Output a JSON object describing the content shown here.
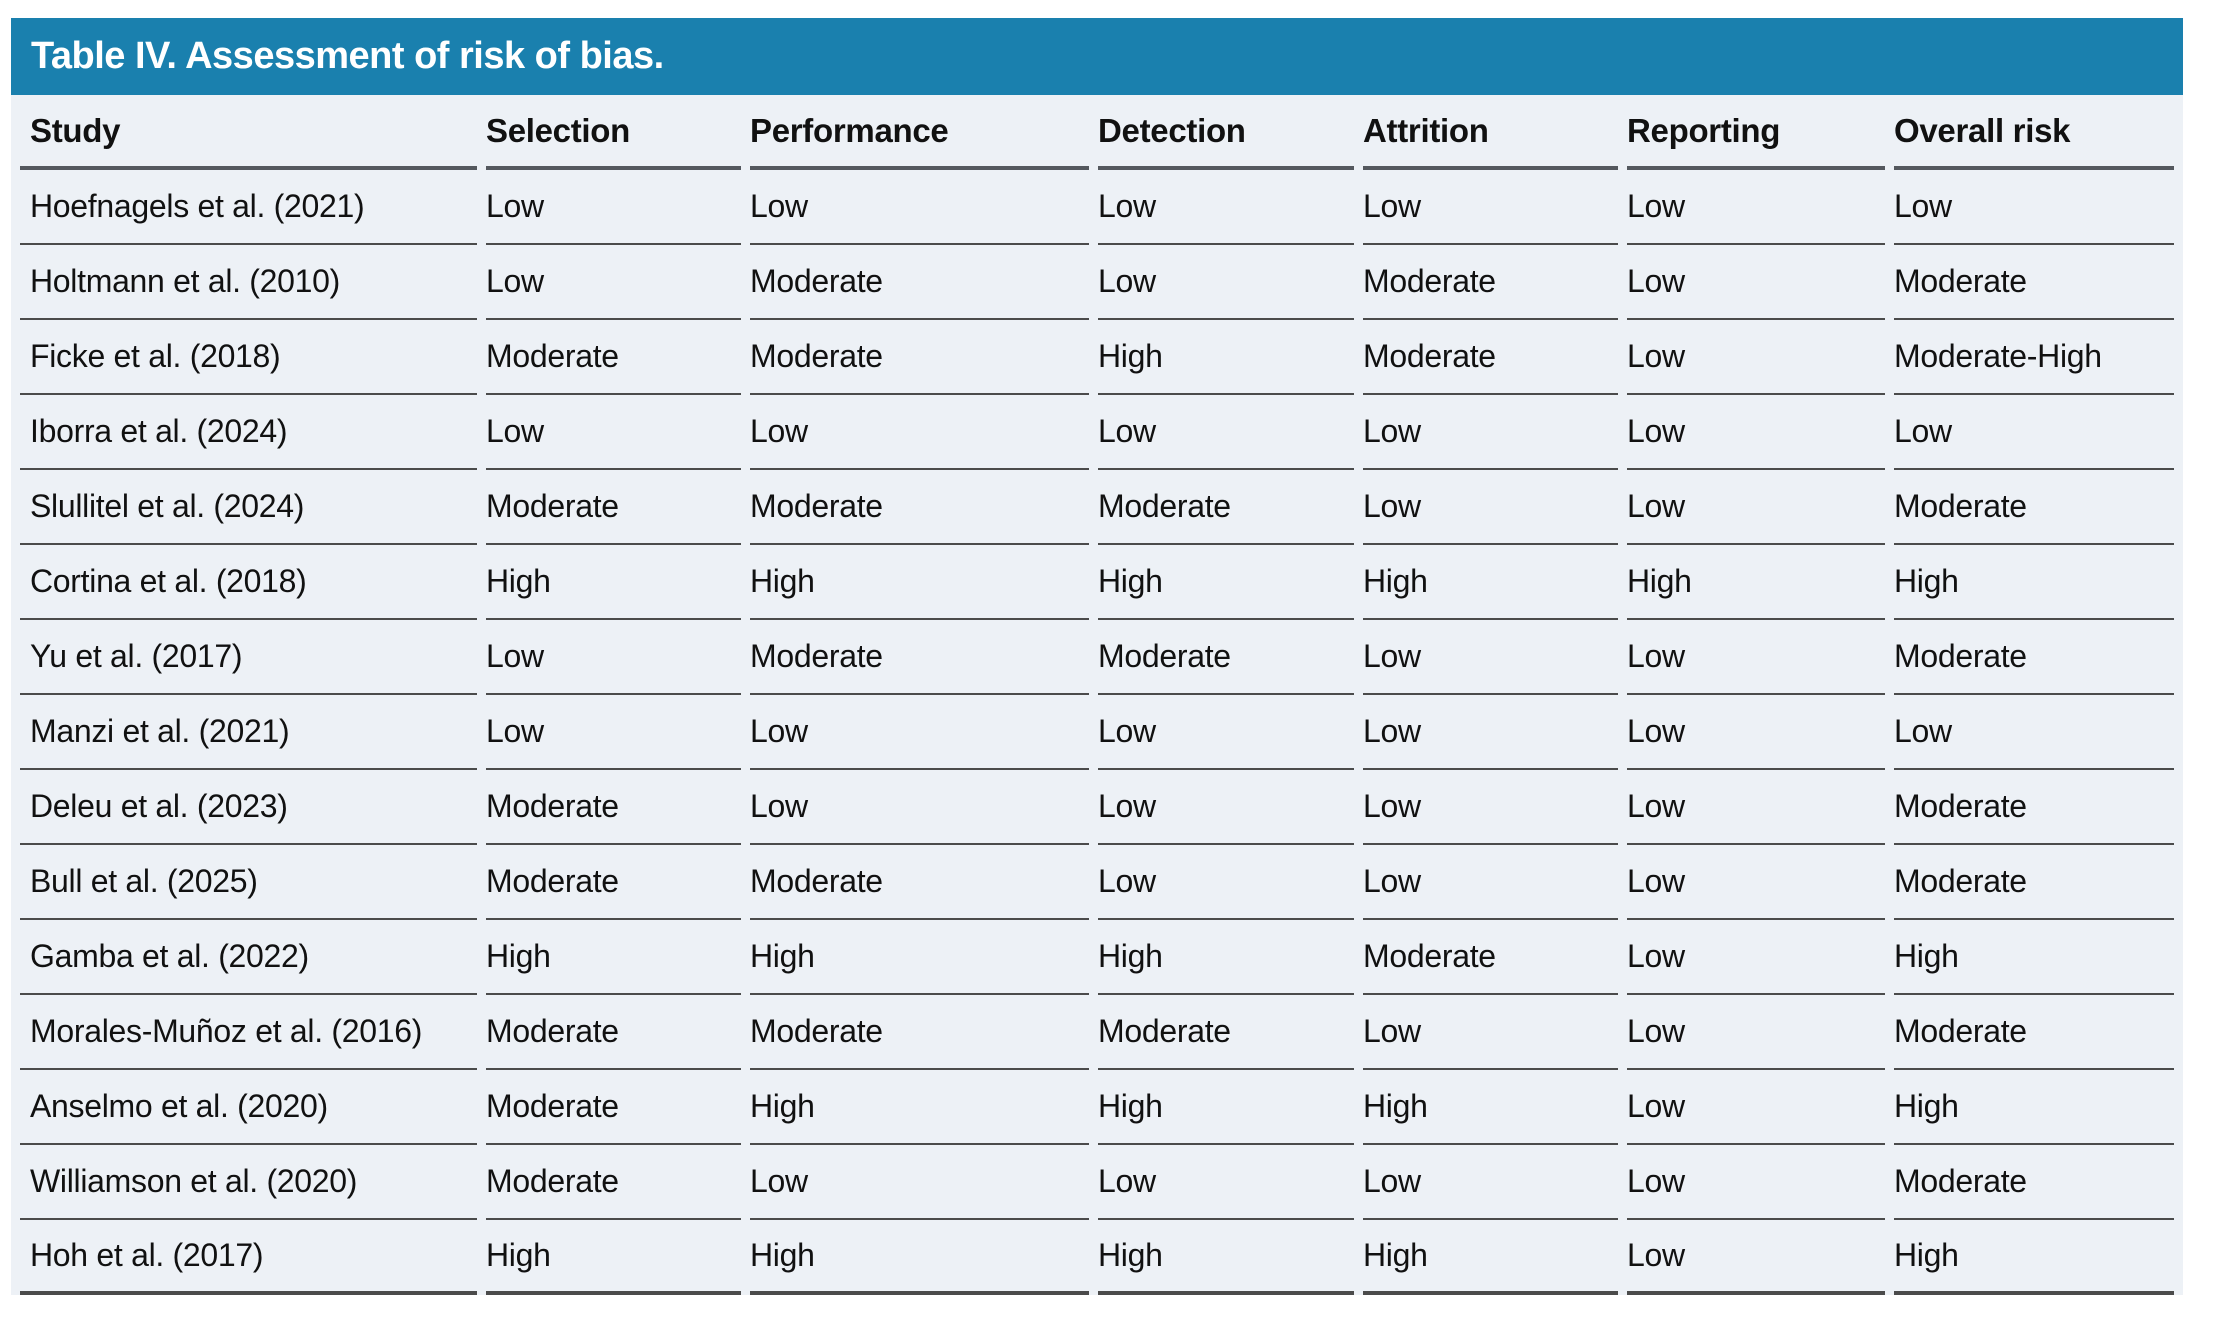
{
  "table": {
    "title": "Table IV. Assessment of risk of bias.",
    "columns": [
      "Study",
      "Selection",
      "Performance",
      "Detection",
      "Attrition",
      "Reporting",
      "Overall risk"
    ],
    "rows": [
      [
        "Hoefnagels et al. (2021)",
        "Low",
        "Low",
        "Low",
        "Low",
        "Low",
        "Low"
      ],
      [
        "Holtmann et al. (2010)",
        "Low",
        "Moderate",
        "Low",
        "Moderate",
        "Low",
        "Moderate"
      ],
      [
        "Ficke et al. (2018)",
        "Moderate",
        "Moderate",
        "High",
        "Moderate",
        "Low",
        "Moderate-High"
      ],
      [
        "Iborra et al. (2024)",
        "Low",
        "Low",
        "Low",
        "Low",
        "Low",
        "Low"
      ],
      [
        "Slullitel et al. (2024)",
        "Moderate",
        "Moderate",
        "Moderate",
        "Low",
        "Low",
        "Moderate"
      ],
      [
        "Cortina et al. (2018)",
        "High",
        "High",
        "High",
        "High",
        "High",
        "High"
      ],
      [
        "Yu et al. (2017)",
        "Low",
        "Moderate",
        "Moderate",
        "Low",
        "Low",
        "Moderate"
      ],
      [
        "Manzi et al. (2021)",
        "Low",
        "Low",
        "Low",
        "Low",
        "Low",
        "Low"
      ],
      [
        "Deleu et al. (2023)",
        "Moderate",
        "Low",
        "Low",
        "Low",
        "Low",
        "Moderate"
      ],
      [
        "Bull et al. (2025)",
        "Moderate",
        "Moderate",
        "Low",
        "Low",
        "Low",
        "Moderate"
      ],
      [
        "Gamba et al. (2022)",
        "High",
        "High",
        "High",
        "Moderate",
        "Low",
        "High"
      ],
      [
        "Morales-Muñoz et al. (2016)",
        "Moderate",
        "Moderate",
        "Moderate",
        "Low",
        "Low",
        "Moderate"
      ],
      [
        "Anselmo et al. (2020)",
        "Moderate",
        "High",
        "High",
        "High",
        "Low",
        "High"
      ],
      [
        "Williamson et al. (2020)",
        "Moderate",
        "Low",
        "Low",
        "Low",
        "Low",
        "Moderate"
      ],
      [
        "Hoh et al. (2017)",
        "High",
        "High",
        "High",
        "High",
        "Low",
        "High"
      ]
    ],
    "colors": {
      "title_bar_bg": "#1A80AE",
      "title_text": "#FFFFFF",
      "body_bg": "#EDF1F6",
      "text": "#111111",
      "row_divider": "#4B4B4B",
      "header_rule": "#54585E"
    }
  }
}
